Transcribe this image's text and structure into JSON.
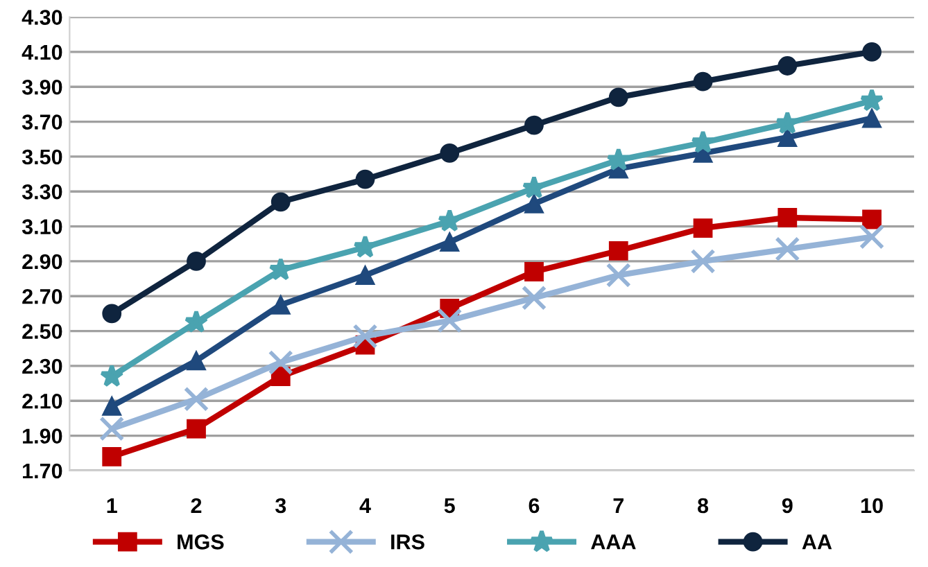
{
  "chart_data": {
    "type": "line",
    "categories": [
      "1",
      "2",
      "3",
      "4",
      "5",
      "6",
      "7",
      "8",
      "9",
      "10"
    ],
    "series": [
      {
        "name": "MGS",
        "color": "#c00000",
        "marker": "square",
        "values": [
          1.78,
          1.94,
          2.24,
          2.42,
          2.63,
          2.84,
          2.96,
          3.09,
          3.15,
          3.14
        ]
      },
      {
        "color": "#1f497d",
        "marker": "triangle",
        "values": [
          2.07,
          2.33,
          2.65,
          2.82,
          3.01,
          3.23,
          3.43,
          3.52,
          3.61,
          3.72
        ]
      },
      {
        "name": "IRS",
        "color": "#95b3d7",
        "marker": "cross",
        "values": [
          1.94,
          2.11,
          2.32,
          2.47,
          2.56,
          2.69,
          2.82,
          2.9,
          2.97,
          3.04
        ]
      },
      {
        "name": "AAA",
        "color": "#4aa3b0",
        "marker": "star",
        "values": [
          2.24,
          2.55,
          2.85,
          2.98,
          3.13,
          3.32,
          3.48,
          3.58,
          3.69,
          3.82
        ]
      },
      {
        "name": "AA",
        "color": "#0f243e",
        "marker": "circle",
        "values": [
          2.6,
          2.9,
          3.24,
          3.37,
          3.52,
          3.68,
          3.84,
          3.93,
          4.02,
          4.1
        ]
      }
    ],
    "ylim": [
      1.7,
      4.3
    ],
    "yticks": [
      {
        "value": 1.7,
        "label": "1.70"
      },
      {
        "value": 1.9,
        "label": "1.90"
      },
      {
        "value": 2.1,
        "label": "2.10"
      },
      {
        "value": 2.3,
        "label": "2.30"
      },
      {
        "value": 2.5,
        "label": "2.50"
      },
      {
        "value": 2.7,
        "label": "2.70"
      },
      {
        "value": 2.9,
        "label": "2.90"
      },
      {
        "value": 3.1,
        "label": "3.10"
      },
      {
        "value": 3.3,
        "label": "3.30"
      },
      {
        "value": 3.5,
        "label": "3.50"
      },
      {
        "value": 3.7,
        "label": "3.70"
      },
      {
        "value": 3.9,
        "label": "3.90"
      },
      {
        "value": 4.1,
        "label": "4.10"
      },
      {
        "value": 4.3,
        "label": "4.30"
      }
    ],
    "grid": "y",
    "legend": "bottom",
    "line_style": "solid"
  }
}
